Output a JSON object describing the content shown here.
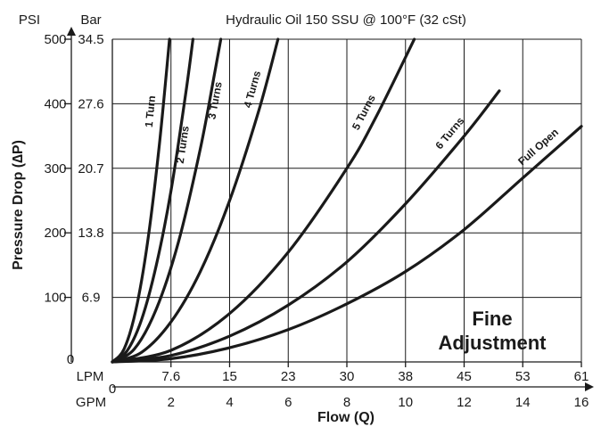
{
  "chart_data": {
    "type": "line",
    "title": "Hydraulic Oil 150 SSU @ 100°F (32 cSt)",
    "xlabel": "Flow (Q)",
    "ylabel": "Pressure Drop (∆P)",
    "y_unit_primary": "PSI",
    "y_unit_secondary": "Bar",
    "x_unit_primary": "LPM",
    "x_unit_secondary": "GPM",
    "x_origin_label": "0",
    "y_origin_label": "0",
    "xlim": [
      0,
      16
    ],
    "ylim": [
      0,
      500
    ],
    "grid": true,
    "x_ticks_gpm": [
      "2",
      "4",
      "6",
      "8",
      "10",
      "12",
      "14",
      "16"
    ],
    "x_ticks_lpm": [
      "7.6",
      "15",
      "23",
      "30",
      "38",
      "45",
      "53",
      "61"
    ],
    "y_ticks_psi": [
      "100",
      "200",
      "300",
      "400",
      "500"
    ],
    "y_ticks_bar": [
      "6.9",
      "13.8",
      "20.7",
      "27.6",
      "34.5"
    ],
    "annotation": [
      "Fine",
      "Adjustment"
    ],
    "series": [
      {
        "name": "1 Turn",
        "x": [
          0,
          0.4,
          0.8,
          1.2,
          1.6,
          1.95
        ],
        "y": [
          0,
          20,
          80,
          185,
          335,
          500
        ]
      },
      {
        "name": "2 Turns",
        "x": [
          0,
          0.5,
          1.0,
          1.5,
          2.0,
          2.5,
          2.75
        ],
        "y": [
          0,
          17,
          66,
          150,
          265,
          415,
          500
        ]
      },
      {
        "name": "3 Turns",
        "x": [
          0,
          0.75,
          1.5,
          2.25,
          3.0,
          3.5,
          3.7
        ],
        "y": [
          0,
          20,
          82,
          185,
          330,
          450,
          500
        ]
      },
      {
        "name": "4 Turns",
        "x": [
          0,
          1,
          2,
          3,
          4,
          5,
          5.65
        ],
        "y": [
          0,
          15,
          62,
          140,
          250,
          390,
          500
        ]
      },
      {
        "name": "5 Turns",
        "x": [
          0,
          2,
          4,
          6,
          8,
          9,
          10.3
        ],
        "y": [
          0,
          18,
          75,
          170,
          300,
          380,
          500
        ]
      },
      {
        "name": "6 Turns",
        "x": [
          0,
          2,
          4,
          6,
          8,
          10,
          12,
          13.2
        ],
        "y": [
          0,
          10,
          40,
          88,
          155,
          245,
          350,
          420
        ]
      },
      {
        "name": "Full Open",
        "x": [
          0,
          2,
          4,
          6,
          8,
          10,
          12,
          14,
          16
        ],
        "y": [
          0,
          5,
          22,
          50,
          90,
          140,
          205,
          285,
          365
        ]
      }
    ]
  }
}
